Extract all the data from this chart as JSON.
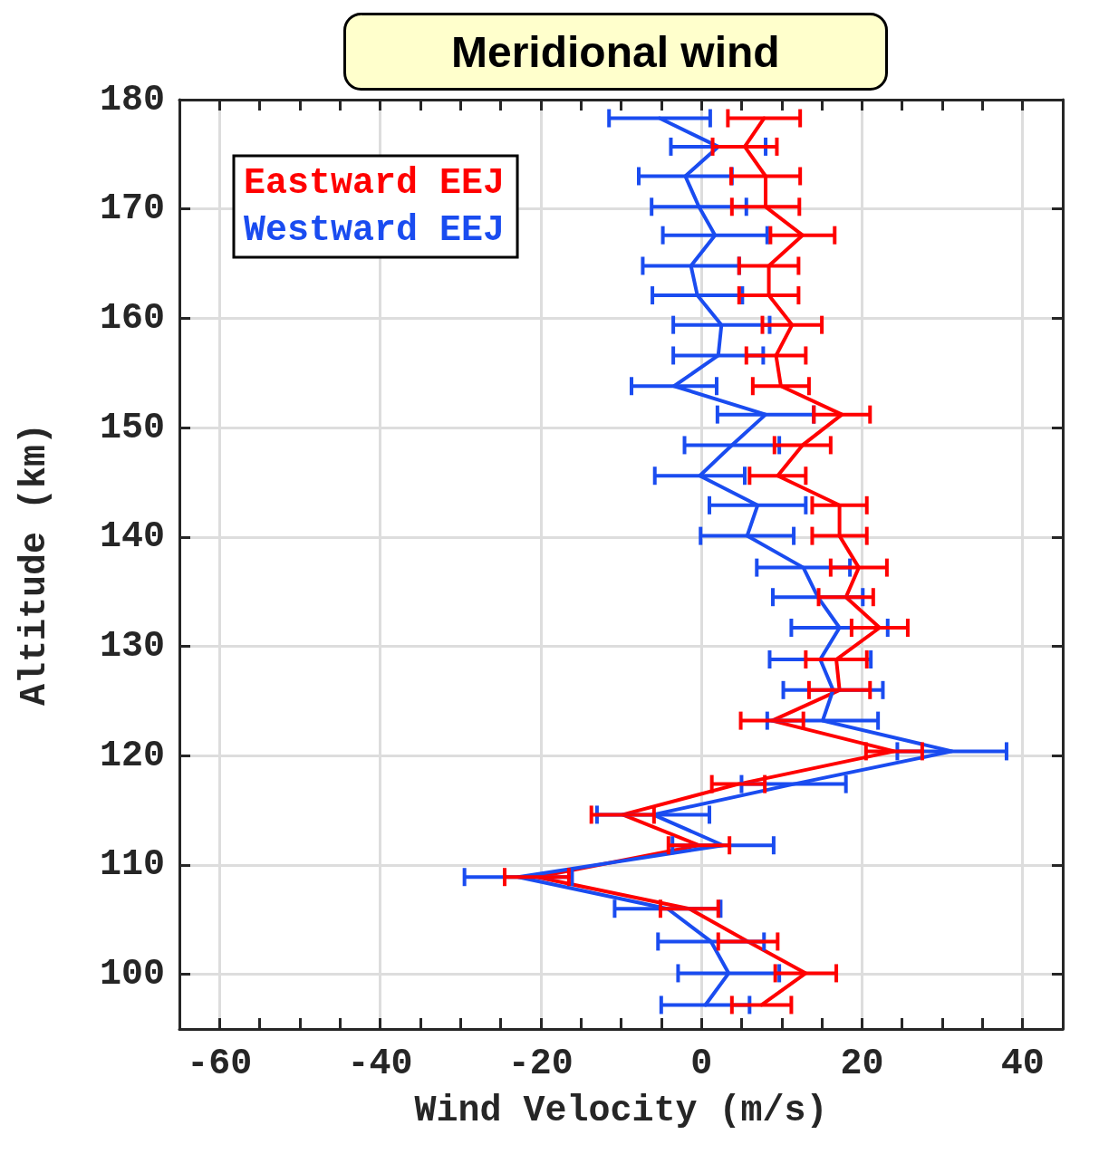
{
  "chart_data": {
    "type": "line",
    "title": "Meridional wind",
    "xlabel": "Wind Velocity (m/s)",
    "ylabel": "Altitude (km)",
    "xlim": [
      -65,
      45
    ],
    "ylim": [
      95,
      180
    ],
    "xticks": [
      -60,
      {
        "value": -55,
        "label": null
      },
      {
        "value": -50,
        "label": null
      },
      {
        "value": -45,
        "label": null
      },
      -40,
      {
        "value": -35,
        "label": null
      },
      {
        "value": -30,
        "label": null
      },
      {
        "value": -25,
        "label": null
      },
      -20,
      {
        "value": -15,
        "label": null
      },
      {
        "value": -10,
        "label": null
      },
      {
        "value": -5,
        "label": null
      },
      0,
      {
        "value": 5,
        "label": null
      },
      {
        "value": 10,
        "label": null
      },
      {
        "value": 15,
        "label": null
      },
      20,
      {
        "value": 25,
        "label": null
      },
      {
        "value": 30,
        "label": null
      },
      {
        "value": 35,
        "label": null
      },
      40
    ],
    "yticks": [
      100,
      110,
      120,
      130,
      140,
      150,
      160,
      170,
      180
    ],
    "grid": true,
    "legend": "top left",
    "marker": "none",
    "line_style": "solid",
    "series": [
      {
        "name": "Eastward EEJ",
        "color": "#ff0000",
        "x": [
          7.8,
          5.4,
          8.0,
          8.0,
          12.6,
          8.4,
          8.4,
          11.3,
          9.3,
          9.9,
          17.5,
          12.6,
          9.5,
          17.2,
          17.2,
          19.6,
          18.0,
          22.2,
          16.8,
          17.2,
          8.8,
          24.0,
          4.6,
          -9.8,
          -0.3,
          -20.5,
          -1.5,
          5.8,
          13.0,
          7.5
        ],
        "values": [
          178.3,
          175.7,
          173.0,
          170.2,
          167.6,
          164.8,
          162.1,
          159.4,
          156.6,
          153.8,
          151.2,
          148.4,
          145.6,
          142.9,
          140.1,
          137.2,
          134.5,
          131.7,
          128.8,
          126.0,
          123.2,
          120.4,
          117.4,
          114.6,
          111.8,
          108.9,
          106.0,
          103.0,
          100.1,
          97.2
        ],
        "xerrors": [
          4.5,
          4.0,
          4.3,
          4.2,
          4.0,
          3.7,
          3.7,
          3.7,
          3.7,
          3.5,
          3.5,
          3.5,
          3.5,
          3.4,
          3.4,
          3.5,
          3.4,
          3.5,
          3.8,
          3.8,
          3.9,
          3.5,
          3.3,
          3.9,
          3.8,
          4.0,
          3.6,
          3.7,
          3.8,
          3.7
        ]
      },
      {
        "name": "Westward EEJ",
        "color": "#1a4cf0",
        "x": [
          -5.2,
          2.1,
          -2.0,
          -0.3,
          1.7,
          -1.3,
          -0.5,
          2.5,
          2.1,
          -3.4,
          8.0,
          3.8,
          -0.2,
          7.0,
          5.7,
          12.7,
          14.5,
          17.2,
          14.8,
          16.4,
          15.1,
          31.2,
          11.5,
          -6.0,
          2.7,
          -22.8,
          -4.2,
          1.2,
          3.4,
          0.5
        ],
        "values": [
          178.3,
          175.7,
          173.0,
          170.2,
          167.6,
          164.8,
          162.1,
          159.4,
          156.6,
          153.8,
          151.2,
          148.4,
          145.6,
          142.9,
          140.1,
          137.2,
          134.5,
          131.7,
          128.8,
          126.0,
          123.2,
          120.4,
          117.4,
          114.6,
          111.8,
          108.9,
          106.0,
          103.0,
          100.1,
          97.2
        ],
        "xerrors": [
          6.3,
          5.9,
          5.8,
          5.9,
          6.5,
          6.0,
          5.6,
          6.0,
          5.6,
          5.3,
          6.0,
          5.9,
          5.6,
          6.0,
          5.8,
          5.8,
          5.6,
          6.0,
          6.3,
          6.2,
          6.9,
          6.8,
          6.5,
          7.0,
          6.3,
          6.7,
          6.6,
          6.6,
          6.3,
          5.5
        ]
      }
    ]
  }
}
